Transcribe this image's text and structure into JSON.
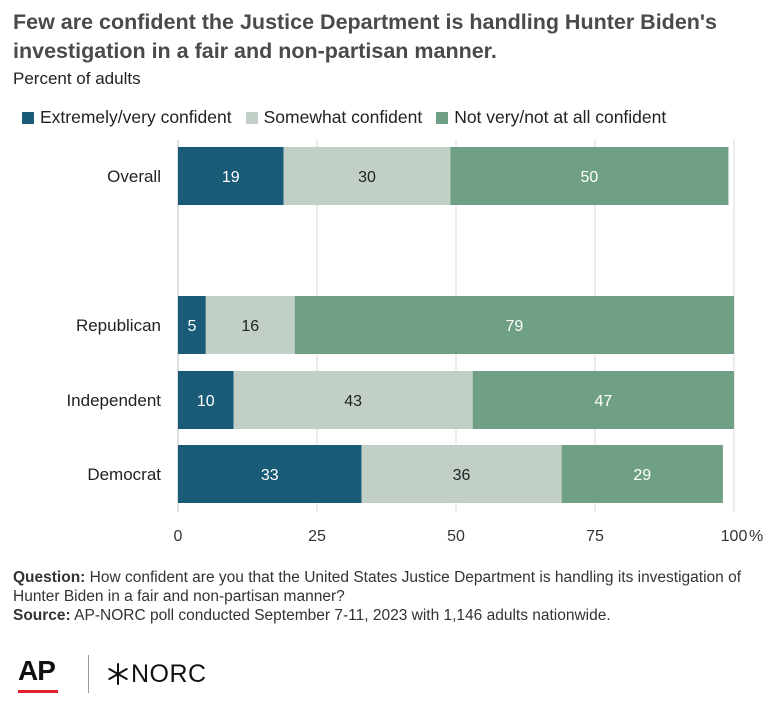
{
  "header": {
    "title": "Few are confident the Justice Department is handling Hunter Biden's investigation in a fair and non-partisan manner.",
    "subtitle": "Percent of adults"
  },
  "colors": {
    "extremely": "#1a5b78",
    "somewhat": "#c1cfc7",
    "not": "#6fa085",
    "grid": "#d9d9d9"
  },
  "chart_data": {
    "type": "bar",
    "orientation": "horizontal",
    "stacked": true,
    "categories": [
      "Overall",
      "Republican",
      "Independent",
      "Democrat"
    ],
    "series": [
      {
        "name": "Extremely/very confident",
        "values": [
          19,
          5,
          10,
          33
        ]
      },
      {
        "name": "Somewhat confident",
        "values": [
          30,
          16,
          43,
          36
        ]
      },
      {
        "name": "Not very/not at all confident",
        "values": [
          50,
          79,
          47,
          29
        ]
      }
    ],
    "xlim": [
      0,
      100
    ],
    "xticks": [
      "0",
      "25",
      "50",
      "75",
      "100"
    ],
    "x_unit": "%",
    "grid": true,
    "legend_position": "top"
  },
  "footer": {
    "question_label": "Question:",
    "question_text": "How confident are you that the United States Justice Department is handling its investigation of Hunter Biden in a fair and non-partisan manner?",
    "source_label": "Source:",
    "source_text": "AP-NORC poll conducted September 7-11, 2023 with 1,146 adults nationwide."
  },
  "logos": {
    "ap": "AP",
    "norc": "NORC"
  }
}
